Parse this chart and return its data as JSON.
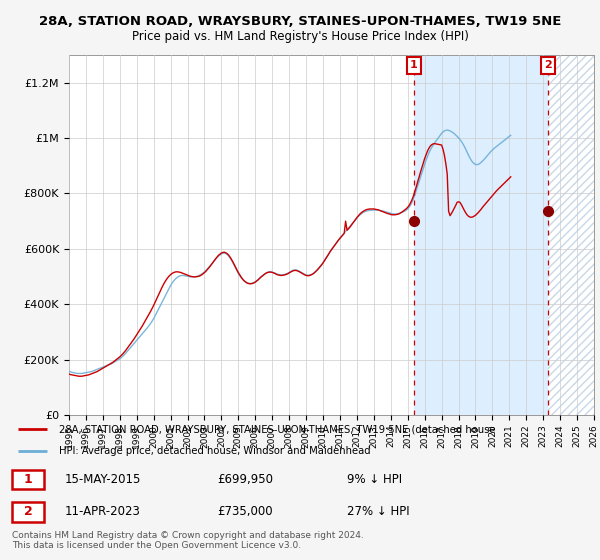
{
  "title": "28A, STATION ROAD, WRAYSBURY, STAINES-UPON-THAMES, TW19 5NE",
  "subtitle": "Price paid vs. HM Land Registry's House Price Index (HPI)",
  "legend_line1": "28A, STATION ROAD, WRAYSBURY, STAINES-UPON-THAMES, TW19 5NE (detached house",
  "legend_line2": "HPI: Average price, detached house, Windsor and Maidenhead",
  "footnote": "Contains HM Land Registry data © Crown copyright and database right 2024.\nThis data is licensed under the Open Government Licence v3.0.",
  "annotation1": {
    "label": "1",
    "date": "15-MAY-2015",
    "price": "£699,950",
    "pct": "9% ↓ HPI",
    "year": 2015.37,
    "value": 699950
  },
  "annotation2": {
    "label": "2",
    "date": "11-APR-2023",
    "price": "£735,000",
    "pct": "27% ↓ HPI",
    "year": 2023.27,
    "value": 735000
  },
  "red_color": "#cc0000",
  "blue_color": "#6baed6",
  "shade_color": "#ddeeff",
  "hatch_color": "#ccddee",
  "background_color": "#f5f5f5",
  "plot_bg_color": "#ffffff",
  "ylim": [
    0,
    1300000
  ],
  "yticks": [
    0,
    200000,
    400000,
    600000,
    800000,
    1000000,
    1200000
  ],
  "ytick_labels": [
    "£0",
    "£200K",
    "£400K",
    "£600K",
    "£800K",
    "£1M",
    "£1.2M"
  ],
  "xstart": 1995,
  "xend": 2026,
  "hpi_monthly": [
    158000,
    156000,
    154000,
    153000,
    152000,
    151000,
    150000,
    150000,
    150000,
    150000,
    151000,
    152000,
    153000,
    154000,
    155000,
    156000,
    157000,
    159000,
    161000,
    163000,
    165000,
    167000,
    169000,
    171000,
    173000,
    175000,
    177000,
    179000,
    181000,
    183000,
    185000,
    188000,
    191000,
    194000,
    197000,
    200000,
    203000,
    207000,
    212000,
    217000,
    222000,
    228000,
    234000,
    240000,
    246000,
    252000,
    258000,
    264000,
    270000,
    276000,
    282000,
    288000,
    294000,
    300000,
    306000,
    312000,
    318000,
    325000,
    332000,
    340000,
    348000,
    358000,
    368000,
    378000,
    388000,
    398000,
    408000,
    418000,
    428000,
    438000,
    448000,
    458000,
    468000,
    476000,
    483000,
    489000,
    494000,
    498000,
    501000,
    503000,
    504000,
    504000,
    503000,
    502000,
    501000,
    500000,
    499000,
    499000,
    499000,
    499000,
    500000,
    501000,
    503000,
    506000,
    509000,
    513000,
    517000,
    522000,
    527000,
    533000,
    539000,
    545000,
    551000,
    557000,
    563000,
    569000,
    574000,
    578000,
    582000,
    584000,
    585000,
    583000,
    580000,
    575000,
    568000,
    560000,
    551000,
    541000,
    531000,
    521000,
    511000,
    503000,
    496000,
    490000,
    485000,
    481000,
    478000,
    476000,
    475000,
    475000,
    476000,
    478000,
    481000,
    485000,
    489000,
    494000,
    499000,
    503000,
    507000,
    511000,
    514000,
    516000,
    517000,
    517000,
    516000,
    514000,
    512000,
    510000,
    508000,
    507000,
    506000,
    506000,
    507000,
    508000,
    510000,
    512000,
    515000,
    518000,
    521000,
    523000,
    524000,
    524000,
    522000,
    520000,
    517000,
    514000,
    511000,
    508000,
    506000,
    505000,
    505000,
    506000,
    508000,
    511000,
    515000,
    520000,
    525000,
    531000,
    537000,
    543000,
    550000,
    558000,
    566000,
    574000,
    582000,
    590000,
    597000,
    604000,
    611000,
    618000,
    625000,
    632000,
    639000,
    645000,
    651000,
    657000,
    663000,
    669000,
    675000,
    681000,
    687000,
    693000,
    699000,
    705000,
    711000,
    717000,
    722000,
    726000,
    730000,
    733000,
    735000,
    737000,
    738000,
    739000,
    739000,
    740000,
    740000,
    740000,
    740000,
    740000,
    739000,
    738000,
    737000,
    736000,
    734000,
    733000,
    731000,
    730000,
    728000,
    727000,
    726000,
    726000,
    726000,
    727000,
    728000,
    730000,
    732000,
    734000,
    737000,
    740000,
    744000,
    750000,
    758000,
    768000,
    780000,
    794000,
    810000,
    826000,
    842000,
    858000,
    874000,
    890000,
    906000,
    921000,
    934000,
    946000,
    957000,
    966000,
    974000,
    982000,
    989000,
    996000,
    1003000,
    1010000,
    1017000,
    1022000,
    1026000,
    1028000,
    1029000,
    1028000,
    1026000,
    1023000,
    1020000,
    1016000,
    1011000,
    1006000,
    1001000,
    995000,
    988000,
    980000,
    971000,
    961000,
    950000,
    939000,
    929000,
    920000,
    913000,
    908000,
    905000,
    904000,
    905000,
    908000,
    912000,
    917000,
    922000,
    928000,
    934000,
    940000,
    946000,
    952000,
    957000,
    962000,
    966000,
    970000,
    974000,
    978000,
    982000,
    986000,
    990000,
    994000,
    998000,
    1002000,
    1006000,
    1010000
  ],
  "red_monthly": [
    148000,
    146000,
    145000,
    144000,
    143000,
    142000,
    141000,
    140000,
    140000,
    140000,
    141000,
    142000,
    143000,
    144000,
    145000,
    147000,
    149000,
    151000,
    153000,
    155000,
    157000,
    160000,
    163000,
    166000,
    169000,
    172000,
    175000,
    178000,
    181000,
    184000,
    187000,
    190000,
    194000,
    198000,
    202000,
    206000,
    210000,
    215000,
    220000,
    226000,
    232000,
    239000,
    246000,
    253000,
    260000,
    267000,
    274000,
    282000,
    290000,
    298000,
    306000,
    314000,
    322000,
    331000,
    340000,
    349000,
    358000,
    367000,
    376000,
    386000,
    396000,
    407000,
    418000,
    429000,
    440000,
    451000,
    462000,
    472000,
    481000,
    489000,
    496000,
    502000,
    507000,
    511000,
    514000,
    516000,
    517000,
    517000,
    516000,
    515000,
    513000,
    511000,
    509000,
    507000,
    505000,
    503000,
    501000,
    500000,
    499000,
    499000,
    499000,
    500000,
    501000,
    503000,
    506000,
    510000,
    514000,
    519000,
    525000,
    531000,
    537000,
    544000,
    551000,
    558000,
    565000,
    571000,
    577000,
    581000,
    585000,
    587000,
    588000,
    586000,
    583000,
    578000,
    571000,
    563000,
    554000,
    544000,
    534000,
    524000,
    514000,
    506000,
    498000,
    491000,
    485000,
    481000,
    477000,
    475000,
    474000,
    474000,
    475000,
    477000,
    480000,
    484000,
    488000,
    493000,
    498000,
    502000,
    506000,
    510000,
    513000,
    515000,
    516000,
    516000,
    515000,
    513000,
    511000,
    508000,
    506000,
    505000,
    504000,
    504000,
    505000,
    506000,
    508000,
    510000,
    513000,
    516000,
    519000,
    521000,
    522000,
    522000,
    520000,
    518000,
    515000,
    512000,
    509000,
    506000,
    504000,
    503000,
    503000,
    505000,
    507000,
    510000,
    514000,
    519000,
    524000,
    530000,
    536000,
    542000,
    549000,
    557000,
    565000,
    573000,
    581000,
    590000,
    597000,
    604000,
    611000,
    618000,
    625000,
    632000,
    638000,
    644000,
    650000,
    656000,
    699950,
    667000,
    672000,
    678000,
    685000,
    692000,
    699000,
    706000,
    713000,
    719000,
    725000,
    730000,
    734000,
    737000,
    740000,
    742000,
    743000,
    744000,
    744000,
    744000,
    744000,
    743000,
    742000,
    741000,
    739000,
    737000,
    735000,
    733000,
    731000,
    729000,
    727000,
    726000,
    724000,
    723000,
    723000,
    723000,
    724000,
    725000,
    727000,
    730000,
    733000,
    737000,
    741000,
    745000,
    750000,
    757000,
    766000,
    777000,
    790000,
    806000,
    823000,
    841000,
    858000,
    876000,
    893000,
    910000,
    926000,
    940000,
    953000,
    963000,
    971000,
    976000,
    979000,
    980000,
    979000,
    978000,
    977000,
    976000,
    975000,
    960000,
    938000,
    908000,
    870000,
    735000,
    720000,
    728000,
    737000,
    747000,
    757000,
    768000,
    770000,
    768000,
    760000,
    750000,
    740000,
    731000,
    723000,
    718000,
    715000,
    714000,
    715000,
    718000,
    721000,
    726000,
    731000,
    737000,
    743000,
    750000,
    756000,
    762000,
    768000,
    774000,
    780000,
    786000,
    792000,
    798000,
    804000,
    810000,
    815000,
    820000,
    825000,
    830000,
    835000,
    840000,
    845000,
    850000,
    855000,
    860000
  ],
  "year_start": 1995,
  "months_per_year": 12
}
